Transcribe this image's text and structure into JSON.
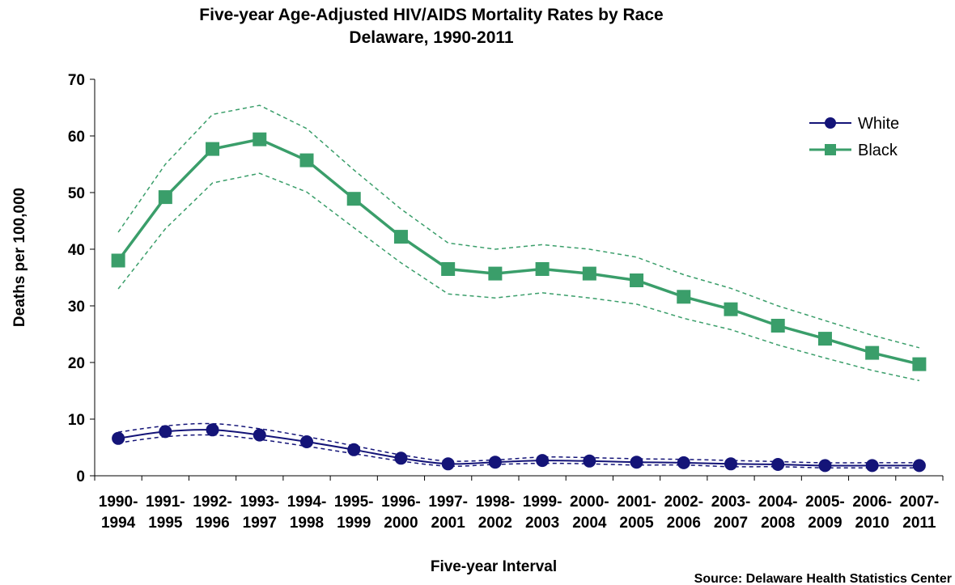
{
  "chart_data": {
    "type": "line",
    "title": "Five-year Age-Adjusted HIV/AIDS  Mortality Rates by Race",
    "subtitle": "Delaware, 1990-2011",
    "xlabel": "Five-year Interval",
    "ylabel": "Deaths per 100,000",
    "ylim": [
      0,
      70
    ],
    "yticks": [
      "0",
      "10",
      "20",
      "30",
      "40",
      "50",
      "60",
      "70"
    ],
    "categories": [
      [
        "1990-",
        "1994"
      ],
      [
        "1991-",
        "1995"
      ],
      [
        "1992-",
        "1996"
      ],
      [
        "1993-",
        "1997"
      ],
      [
        "1994-",
        "1998"
      ],
      [
        "1995-",
        "1999"
      ],
      [
        "1996-",
        "2000"
      ],
      [
        "1997-",
        "2001"
      ],
      [
        "1998-",
        "2002"
      ],
      [
        "1999-",
        "2003"
      ],
      [
        "2000-",
        "2004"
      ],
      [
        "2001-",
        "2005"
      ],
      [
        "2002-",
        "2006"
      ],
      [
        "2003-",
        "2007"
      ],
      [
        "2004-",
        "2008"
      ],
      [
        "2005-",
        "2009"
      ],
      [
        "2006-",
        "2010"
      ],
      [
        "2007-",
        "2011"
      ]
    ],
    "series": [
      {
        "name": "White",
        "color": "#141478",
        "marker": "circle",
        "values": [
          6.6,
          7.8,
          8.1,
          7.2,
          6.0,
          4.6,
          3.1,
          2.1,
          2.4,
          2.7,
          2.6,
          2.4,
          2.3,
          2.1,
          2.0,
          1.8,
          1.8,
          1.8
        ],
        "upper": [
          7.7,
          8.8,
          9.2,
          8.3,
          6.9,
          5.3,
          3.7,
          2.6,
          2.8,
          3.3,
          3.2,
          3.0,
          2.9,
          2.7,
          2.5,
          2.3,
          2.3,
          2.3
        ],
        "lower": [
          5.8,
          6.9,
          7.2,
          6.4,
          5.2,
          3.9,
          2.6,
          1.7,
          2.0,
          2.2,
          2.1,
          1.9,
          1.9,
          1.6,
          1.6,
          1.4,
          1.4,
          1.4
        ]
      },
      {
        "name": "Black",
        "color": "#3A9E6A",
        "marker": "square",
        "values": [
          38.0,
          49.2,
          57.7,
          59.4,
          55.7,
          48.9,
          42.2,
          36.5,
          35.7,
          36.5,
          35.7,
          34.5,
          31.6,
          29.4,
          26.5,
          24.2,
          21.7,
          19.7
        ],
        "upper": [
          43.0,
          55.0,
          63.8,
          65.4,
          61.3,
          54.0,
          47.1,
          41.1,
          40.0,
          40.8,
          40.0,
          38.6,
          35.5,
          33.1,
          30.0,
          27.4,
          24.8,
          22.6
        ],
        "lower": [
          33.0,
          43.6,
          51.7,
          53.4,
          50.1,
          43.8,
          37.6,
          32.1,
          31.4,
          32.3,
          31.4,
          30.3,
          27.8,
          25.8,
          23.1,
          20.8,
          18.6,
          16.8
        ]
      }
    ],
    "legend": {
      "position": "top-right"
    },
    "grid": false
  },
  "source_text": "Source:   Delaware Health Statistics Center"
}
